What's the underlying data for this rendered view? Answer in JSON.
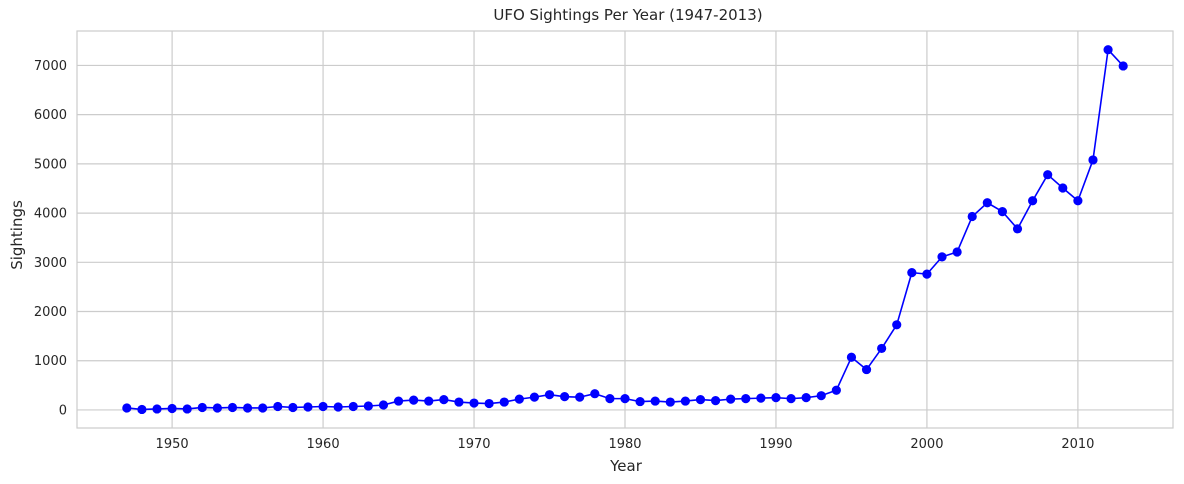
{
  "chart_data": {
    "type": "line",
    "title": "UFO Sightings Per Year (1947-2013)",
    "xlabel": "Year",
    "ylabel": "Sightings",
    "xlim": [
      1943.7,
      2016.3
    ],
    "ylim": [
      -367,
      7700
    ],
    "x_ticks": [
      1950,
      1960,
      1970,
      1980,
      1990,
      2000,
      2010
    ],
    "y_ticks": [
      0,
      1000,
      2000,
      3000,
      4000,
      5000,
      6000,
      7000
    ],
    "grid": true,
    "line_color": "#0000ff",
    "marker": "circle",
    "x": [
      1947,
      1948,
      1949,
      1950,
      1951,
      1952,
      1953,
      1954,
      1955,
      1956,
      1957,
      1958,
      1959,
      1960,
      1961,
      1962,
      1963,
      1964,
      1965,
      1966,
      1967,
      1968,
      1969,
      1970,
      1971,
      1972,
      1973,
      1974,
      1975,
      1976,
      1977,
      1978,
      1979,
      1980,
      1981,
      1982,
      1983,
      1984,
      1985,
      1986,
      1987,
      1988,
      1989,
      1990,
      1991,
      1992,
      1993,
      1994,
      1995,
      1996,
      1997,
      1998,
      1999,
      2000,
      2001,
      2002,
      2003,
      2004,
      2005,
      2006,
      2007,
      2008,
      2009,
      2010,
      2011,
      2012,
      2013
    ],
    "values": [
      40,
      10,
      20,
      30,
      20,
      50,
      40,
      50,
      40,
      40,
      70,
      50,
      60,
      70,
      60,
      70,
      80,
      100,
      180,
      200,
      180,
      210,
      160,
      140,
      130,
      160,
      220,
      260,
      310,
      270,
      260,
      330,
      230,
      230,
      170,
      180,
      160,
      180,
      210,
      190,
      220,
      230,
      240,
      250,
      230,
      250,
      290,
      400,
      1070,
      820,
      1250,
      1730,
      2790,
      2760,
      3110,
      3210,
      3930,
      4210,
      4030,
      3680,
      4250,
      4780,
      4510,
      4250,
      5080,
      7320,
      6990
    ]
  }
}
